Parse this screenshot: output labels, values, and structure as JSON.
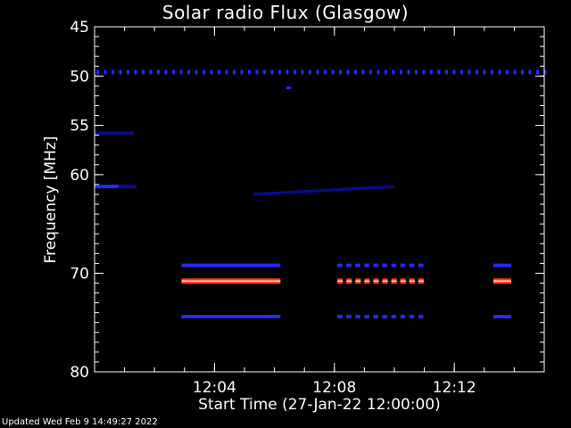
{
  "chart_data": {
    "type": "heatmap",
    "title": "Solar radio Flux (Glasgow)",
    "xlabel": "Start Time (27-Jan-22 12:00:00)",
    "ylabel": "Frequency [MHz]",
    "xlim_minutes": [
      0,
      15
    ],
    "ylim_mhz": [
      45,
      80
    ],
    "y_axis_inverted": true,
    "x_ticks": [
      {
        "value": 4,
        "label": "12:04"
      },
      {
        "value": 8,
        "label": "12:08"
      },
      {
        "value": 12,
        "label": "12:12"
      }
    ],
    "y_ticks": [
      {
        "value": 45,
        "label": "45"
      },
      {
        "value": 50,
        "label": "50"
      },
      {
        "value": 55,
        "label": "55"
      },
      {
        "value": 60,
        "label": "60"
      },
      {
        "value": 70,
        "label": "70"
      },
      {
        "value": 80,
        "label": "80"
      }
    ],
    "colors": {
      "background": "#000000",
      "weak": "#0a0a8c",
      "medium": "#2828ff",
      "strong": "#ff3a1a",
      "peak": "#ffd0c0"
    },
    "features": [
      {
        "kind": "dotted_line",
        "freq_mhz": 49.6,
        "t_start": 0,
        "t_end": 15,
        "intensity": "medium"
      },
      {
        "kind": "band",
        "freq_mhz": 55.8,
        "t_start": 0,
        "t_end": 1.3,
        "intensity": "weak"
      },
      {
        "kind": "band",
        "freq_mhz": 61.2,
        "t_start": 0,
        "t_end": 0.8,
        "intensity": "medium"
      },
      {
        "kind": "band",
        "freq_mhz": 61.2,
        "t_start": 0.8,
        "t_end": 1.4,
        "intensity": "weak"
      },
      {
        "kind": "diagonal",
        "freq_start": 62.0,
        "freq_end": 61.2,
        "t_start": 5.3,
        "t_end": 10.0,
        "intensity": "weak"
      },
      {
        "kind": "band",
        "freq_mhz": 69.2,
        "t_start": 2.9,
        "t_end": 6.2,
        "intensity": "medium"
      },
      {
        "kind": "band",
        "freq_mhz": 70.8,
        "t_start": 2.9,
        "t_end": 6.2,
        "intensity": "strong"
      },
      {
        "kind": "band",
        "freq_mhz": 74.4,
        "t_start": 2.9,
        "t_end": 6.2,
        "intensity": "medium"
      },
      {
        "kind": "dashed",
        "freq_mhz": 69.2,
        "t_start": 8.1,
        "t_end": 11.1,
        "intensity": "medium"
      },
      {
        "kind": "dashed",
        "freq_mhz": 70.8,
        "t_start": 8.1,
        "t_end": 11.1,
        "intensity": "strong"
      },
      {
        "kind": "dashed",
        "freq_mhz": 74.4,
        "t_start": 8.1,
        "t_end": 11.1,
        "intensity": "medium"
      },
      {
        "kind": "band",
        "freq_mhz": 69.2,
        "t_start": 13.3,
        "t_end": 13.9,
        "intensity": "medium"
      },
      {
        "kind": "band",
        "freq_mhz": 70.8,
        "t_start": 13.3,
        "t_end": 13.9,
        "intensity": "strong"
      },
      {
        "kind": "band",
        "freq_mhz": 74.4,
        "t_start": 13.3,
        "t_end": 13.9,
        "intensity": "medium"
      },
      {
        "kind": "spot",
        "freq_mhz": 51.2,
        "t_start": 6.4,
        "t_end": 6.55,
        "intensity": "medium"
      }
    ]
  },
  "footer": {
    "updated": "Updated Wed Feb  9 14:49:27 2022"
  }
}
